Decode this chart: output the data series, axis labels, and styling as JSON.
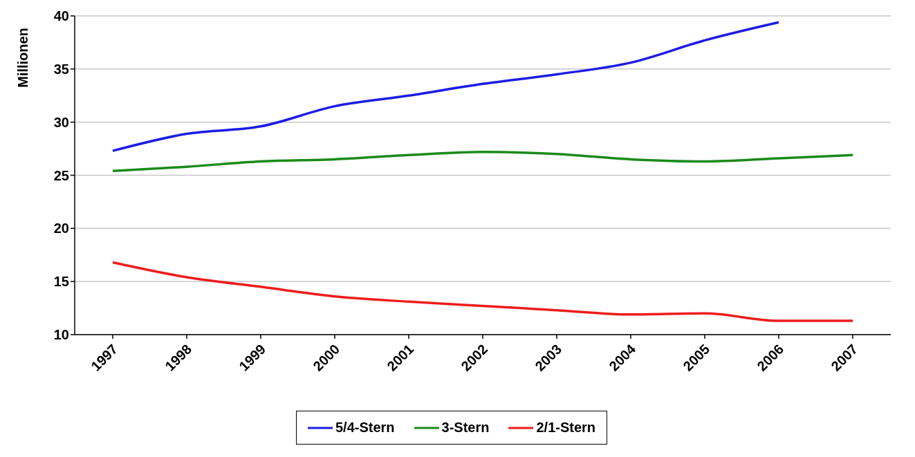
{
  "chart_data": {
    "type": "line",
    "ylabel": "Millionen",
    "categories": [
      "1997",
      "1998",
      "1999",
      "2000",
      "2001",
      "2002",
      "2003",
      "2004",
      "2005",
      "2006",
      "2007"
    ],
    "series": [
      {
        "name": "5/4-Stern",
        "color": "#1c1ce6",
        "values": [
          27.3,
          28.9,
          29.6,
          31.5,
          32.5,
          33.6,
          34.5,
          35.6,
          37.7,
          39.4,
          null
        ]
      },
      {
        "name": "3-Stern",
        "color": "#1a8a1a",
        "values": [
          25.4,
          25.8,
          26.3,
          26.5,
          26.9,
          27.2,
          27.0,
          26.5,
          26.3,
          26.6,
          26.9
        ]
      },
      {
        "name": "2/1-Stern",
        "color": "#ee1c1c",
        "values": [
          16.8,
          15.4,
          14.5,
          13.6,
          13.1,
          12.7,
          12.3,
          11.9,
          12.0,
          11.3,
          11.3
        ]
      }
    ],
    "ylim": [
      10,
      40
    ],
    "yticks": [
      10,
      15,
      20,
      25,
      30,
      35,
      40
    ],
    "grid": "y",
    "legend": "bottom",
    "marker": "none",
    "line_style": "solid"
  }
}
